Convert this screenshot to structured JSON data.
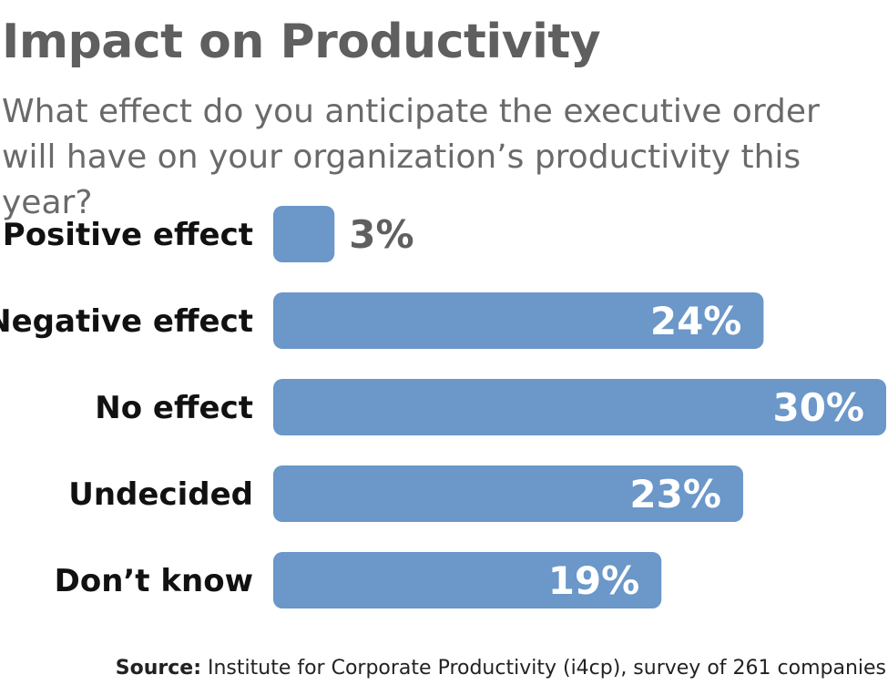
{
  "title": "Impact on Productivity",
  "subtitle": "What effect do you anticipate the executive order will have on your organization’s productivity this year?",
  "source": {
    "label": "Source:",
    "text": "Institute for Corporate Productivity (i4cp), survey of 261 companies"
  },
  "colors": {
    "bar": "#6b97c9",
    "value_inside": "#ffffff",
    "value_outside": "#5f5f5f"
  },
  "chart_data": {
    "type": "bar",
    "orientation": "horizontal",
    "title": "Impact on Productivity",
    "subtitle": "What effect do you anticipate the executive order will have on your organization’s productivity this year?",
    "categories": [
      "Positive effect",
      "Negative effect",
      "No effect",
      "Undecided",
      "Don’t know"
    ],
    "values": [
      3,
      24,
      30,
      23,
      19
    ],
    "value_labels": [
      "3%",
      "24%",
      "30%",
      "23%",
      "19%"
    ],
    "unit": "%",
    "xlim": [
      0,
      30
    ],
    "grid": false,
    "legend": "none"
  }
}
